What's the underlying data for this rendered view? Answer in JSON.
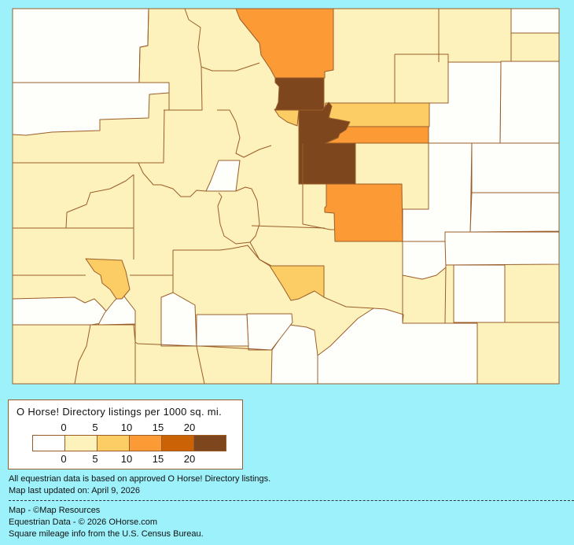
{
  "legend": {
    "title": "O Horse! Directory listings per 1000 sq. mi.",
    "top_ticks": [
      "0",
      "5",
      "10",
      "15",
      "20"
    ],
    "bottom_ticks": [
      "0",
      "5",
      "10",
      "15",
      "20"
    ],
    "bins": [
      {
        "range": "0",
        "color": "#ffffff"
      },
      {
        "range": "0-5",
        "color": "#fdf2bb"
      },
      {
        "range": "5-10",
        "color": "#fdcd65"
      },
      {
        "range": "10-15",
        "color": "#fc9a36"
      },
      {
        "range": "15-20",
        "color": "#cb6306"
      },
      {
        "range": "20+",
        "color": "#7d461d"
      }
    ]
  },
  "notes": {
    "basis": "All equestrian data is based on approved O Horse! Directory listings.",
    "updated": "Map last updated on: April 9, 2026"
  },
  "credits": {
    "map": "Map - ©Map Resources",
    "data": "Equestrian Data - © 2026 OHorse.com",
    "census": "Square mileage info from the U.S. Census Bureau."
  },
  "colors": {
    "background": "#9cf1fb",
    "border": "#9a5d2a"
  }
}
